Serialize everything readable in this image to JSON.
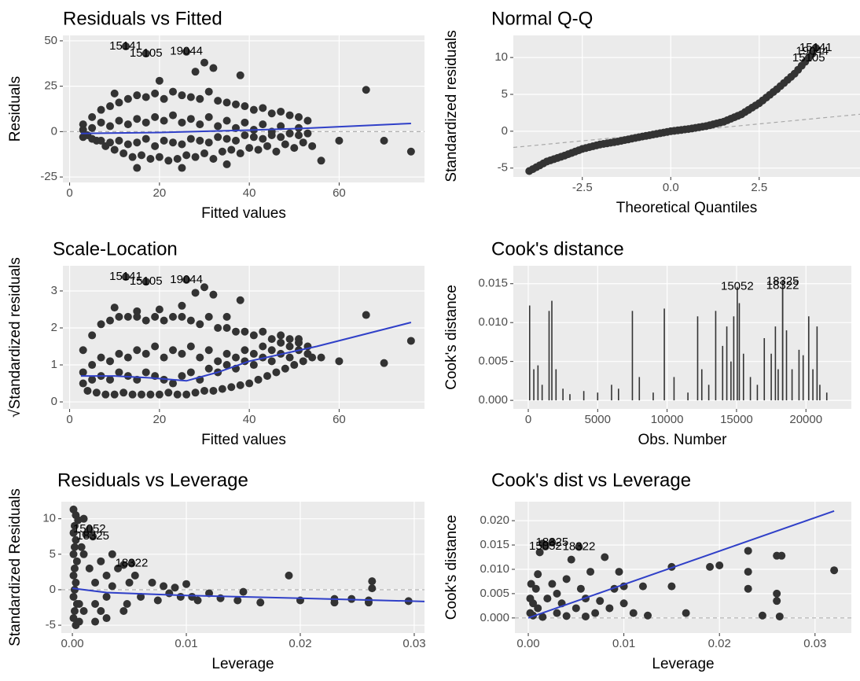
{
  "chart_data": [
    {
      "type": "scatter",
      "title": "Residuals vs Fitted",
      "x_label": "Fitted values",
      "y_label": "Residuals",
      "xlim": [
        -1.5,
        79
      ],
      "ylim": [
        -28,
        53
      ],
      "xticks": [
        0,
        20,
        40,
        60
      ],
      "yticks": [
        -25,
        0,
        25,
        50
      ],
      "grid": true,
      "color": "#333333",
      "hline": 0,
      "x": [
        3,
        5,
        7,
        9,
        11,
        13,
        15,
        17,
        19,
        21,
        23,
        25,
        27,
        29,
        31,
        33,
        35,
        37,
        39,
        41,
        43,
        45,
        47,
        49,
        51,
        53,
        4,
        6,
        8,
        10,
        12,
        14,
        16,
        18,
        20,
        22,
        24,
        26,
        28,
        30,
        32,
        34,
        36,
        38,
        40,
        42,
        44,
        46,
        48,
        50,
        52,
        54,
        3,
        5,
        7,
        9,
        11,
        13,
        15,
        17,
        19,
        21,
        23,
        25,
        27,
        29,
        31,
        33,
        35,
        37,
        39,
        41,
        43,
        45,
        47,
        49,
        51,
        3,
        5,
        7,
        9,
        11,
        13,
        15,
        17,
        19,
        21,
        23,
        25,
        27,
        29,
        31,
        33,
        35,
        37,
        39,
        41,
        43,
        45,
        47,
        49,
        51,
        53,
        12.5,
        17,
        26,
        30,
        28,
        32,
        38,
        60,
        66,
        70,
        76,
        56,
        20,
        10,
        15,
        25,
        35
      ],
      "y": [
        4,
        8,
        12,
        14,
        16,
        18,
        20,
        19,
        21,
        18,
        22,
        20,
        19,
        18,
        22,
        17,
        16,
        15,
        14,
        12,
        13,
        10,
        11,
        9,
        8,
        6,
        -2,
        -5,
        -8,
        -10,
        -12,
        -14,
        -13,
        -15,
        -14,
        -16,
        -15,
        -13,
        -14,
        -12,
        -15,
        -11,
        -10,
        -12,
        -9,
        -10,
        -8,
        -11,
        -7,
        -9,
        -6,
        -8,
        1,
        2,
        5,
        3,
        6,
        4,
        7,
        5,
        8,
        6,
        9,
        5,
        7,
        4,
        8,
        3,
        6,
        2,
        5,
        1,
        4,
        0,
        3,
        -1,
        2,
        -3,
        -4,
        -5,
        -6,
        -5,
        -7,
        -6,
        -4,
        -8,
        -5,
        -6,
        -7,
        -4,
        -5,
        -6,
        -3,
        -4,
        -5,
        -2,
        -3,
        -4,
        -2,
        -3,
        -1,
        -2,
        -1,
        47,
        43,
        44,
        38,
        33,
        35,
        31,
        -5,
        23,
        -5,
        -11,
        -16,
        28,
        21,
        -20,
        -20,
        -18
      ],
      "smooth": {
        "x": [
          2.5,
          20,
          40,
          52,
          76
        ],
        "y": [
          -1,
          -0.5,
          0.8,
          1.8,
          4.5
        ],
        "color": "#3040c8"
      },
      "annotations": [
        {
          "text": "15141",
          "x": 12.5,
          "y": 47
        },
        {
          "text": "15105",
          "x": 17,
          "y": 43
        },
        {
          "text": "19044",
          "x": 26,
          "y": 44
        }
      ]
    },
    {
      "type": "scatter",
      "title": "Normal Q-Q",
      "x_label": "Theoretical Quantiles",
      "y_label": "Standardized residuals",
      "xlim": [
        -4.45,
        5.35
      ],
      "ylim": [
        -6.2,
        13
      ],
      "xticks": [
        -2.5,
        {
          "value": 0,
          "label": "0.0"
        },
        2.5
      ],
      "yticks": [
        -5,
        0,
        5,
        10
      ],
      "grid": true,
      "color": "#333333",
      "x": [
        -4,
        -3.9,
        -3.8,
        -3.7,
        -3.6,
        -3.5,
        -3.4,
        -3.3,
        -3.2,
        -3.1,
        -3,
        -2.9,
        -2.8,
        -2.7,
        -2.6,
        -2.5,
        -2.4,
        -2.3,
        -2.2,
        -2.1,
        -2,
        -1.9,
        -1.8,
        -1.7,
        -1.6,
        -1.5,
        -1.4,
        -1.3,
        -1.2,
        -1.1,
        -1,
        -0.9,
        -0.8,
        -0.7,
        -0.6,
        -0.5,
        -0.4,
        -0.3,
        -0.2,
        -0.1,
        0,
        0.1,
        0.2,
        0.3,
        0.4,
        0.5,
        0.6,
        0.7,
        0.8,
        0.9,
        1,
        1.1,
        1.2,
        1.3,
        1.4,
        1.5,
        1.6,
        1.7,
        1.8,
        1.9,
        2,
        2.1,
        2.2,
        2.3,
        2.4,
        2.5,
        2.6,
        2.7,
        2.8,
        2.9,
        3,
        3.1,
        3.2,
        3.3,
        3.4,
        3.5,
        3.6,
        3.7,
        3.8,
        3.9,
        4,
        4.1
      ],
      "y": [
        -5.4,
        -5.14,
        -4.88,
        -4.62,
        -4.36,
        -4.1,
        -3.94,
        -3.78,
        -3.62,
        -3.46,
        -3.3,
        -3.12,
        -2.94,
        -2.76,
        -2.58,
        -2.4,
        -2.28,
        -2.16,
        -2.04,
        -1.92,
        -1.8,
        -1.72,
        -1.64,
        -1.56,
        -1.48,
        -1.4,
        -1.3,
        -1.2,
        -1.1,
        -1,
        -0.9,
        -0.81,
        -0.72,
        -0.63,
        -0.54,
        -0.45,
        -0.36,
        -0.27,
        -0.18,
        -0.09,
        0,
        0.06,
        0.12,
        0.18,
        0.24,
        0.3,
        0.38,
        0.46,
        0.54,
        0.62,
        0.7,
        0.82,
        0.94,
        1.06,
        1.18,
        1.3,
        1.5,
        1.7,
        1.9,
        2.1,
        2.3,
        2.6,
        2.9,
        3.2,
        3.5,
        3.8,
        4.18,
        4.56,
        4.94,
        5.32,
        5.7,
        6.12,
        6.54,
        6.96,
        7.38,
        7.8,
        8.34,
        8.88,
        9.42,
        9.96,
        10.5,
        11.3
      ],
      "refline": {
        "x": [
          -4.45,
          5.35
        ],
        "y": [
          -2.2,
          2.3
        ]
      },
      "annotations": [
        {
          "text": "15141",
          "x": 4.1,
          "y": 11.3
        },
        {
          "text": "19044",
          "x": 4,
          "y": 10.8
        },
        {
          "text": "15105",
          "x": 3.9,
          "y": 9.9
        }
      ]
    },
    {
      "type": "scatter",
      "title": "Scale-Location",
      "x_label": "Fitted values",
      "y_label": "√Standardized residuals",
      "xlim": [
        -1.5,
        79
      ],
      "ylim": [
        -0.19,
        3.68
      ],
      "xticks": [
        0,
        20,
        40,
        60
      ],
      "yticks": [
        0,
        1,
        2,
        3
      ],
      "grid": true,
      "color": "#333333",
      "x": [
        3,
        5,
        7,
        9,
        11,
        13,
        15,
        17,
        19,
        21,
        23,
        25,
        27,
        29,
        31,
        33,
        35,
        37,
        39,
        41,
        43,
        45,
        47,
        49,
        51,
        53,
        4,
        6,
        8,
        10,
        12,
        14,
        16,
        18,
        20,
        22,
        24,
        26,
        28,
        30,
        32,
        34,
        36,
        38,
        40,
        42,
        44,
        46,
        48,
        50,
        52,
        54,
        3,
        5,
        7,
        9,
        11,
        13,
        15,
        17,
        19,
        21,
        23,
        25,
        27,
        29,
        31,
        33,
        35,
        37,
        39,
        41,
        43,
        45,
        47,
        49,
        51,
        3,
        5,
        7,
        9,
        11,
        13,
        15,
        17,
        19,
        21,
        23,
        25,
        27,
        29,
        31,
        33,
        35,
        37,
        39,
        41,
        43,
        45,
        47,
        49,
        51,
        53,
        12.5,
        17,
        26,
        30,
        28,
        32,
        38,
        60,
        66,
        70,
        76,
        56,
        20,
        10,
        15,
        25,
        35
      ],
      "y": [
        1.4,
        1.8,
        2.1,
        2.2,
        2.3,
        2.3,
        2.3,
        2.2,
        2.3,
        2.2,
        2.3,
        2.3,
        2.2,
        2.1,
        2.3,
        2,
        2,
        1.9,
        1.9,
        1.8,
        1.9,
        1.7,
        1.8,
        1.7,
        1.6,
        1.5,
        0.3,
        0.25,
        0.2,
        0.2,
        0.25,
        0.2,
        0.2,
        0.2,
        0.2,
        0.25,
        0.2,
        0.2,
        0.25,
        0.3,
        0.3,
        0.35,
        0.4,
        0.45,
        0.5,
        0.6,
        0.7,
        0.8,
        0.9,
        1,
        1.1,
        1.2,
        0.8,
        1,
        1.2,
        1.1,
        1.3,
        1.2,
        1.4,
        1.3,
        1.5,
        1.2,
        1.4,
        1.3,
        1.5,
        1.2,
        1.4,
        1.1,
        1.3,
        1.2,
        1.4,
        1.3,
        1.5,
        1.4,
        1.6,
        1.5,
        1.7,
        0.5,
        0.6,
        0.7,
        0.6,
        0.8,
        0.7,
        0.6,
        0.8,
        0.7,
        0.6,
        0.5,
        0.7,
        0.8,
        0.6,
        0.9,
        0.8,
        1,
        0.9,
        1.1,
        1,
        1.2,
        1.1,
        1.3,
        1.2,
        1.4,
        1.3,
        3.38,
        3.25,
        3.3,
        3.1,
        2.95,
        2.9,
        2.75,
        1.1,
        2.35,
        1.05,
        1.65,
        1.2,
        2.5,
        2.55,
        2.45,
        2.6,
        2.3
      ],
      "smooth": {
        "x": [
          2.5,
          10,
          18,
          26,
          33,
          40,
          55,
          76
        ],
        "y": [
          0.7,
          0.7,
          0.65,
          0.57,
          0.8,
          1.1,
          1.5,
          2.15
        ],
        "color": "#3040c8"
      },
      "annotations": [
        {
          "text": "15141",
          "x": 12.5,
          "y": 3.38
        },
        {
          "text": "15105",
          "x": 17,
          "y": 3.25
        },
        {
          "text": "19044",
          "x": 26,
          "y": 3.3
        }
      ]
    },
    {
      "type": "bar",
      "title": "Cook's distance",
      "x_label": "Obs. Number",
      "y_label": "Cook's distance",
      "xlim": [
        -1075,
        23270
      ],
      "ylim": [
        -0.0011,
        0.0173
      ],
      "xticks": [
        0,
        5000,
        10000,
        15000,
        20000
      ],
      "yticks": [
        {
          "value": 0,
          "label": "0.000"
        },
        0.005,
        {
          "value": 0.01,
          "label": "0.010"
        },
        0.015
      ],
      "grid": true,
      "color": "#333333",
      "x": [
        100,
        400,
        700,
        1000,
        1500,
        1700,
        2000,
        2500,
        3000,
        4000,
        5000,
        6000,
        6500,
        7500,
        8000,
        9000,
        9800,
        10500,
        11500,
        12200,
        12500,
        13000,
        13500,
        14000,
        14300,
        14600,
        14800,
        15052,
        15200,
        15500,
        16000,
        16500,
        17000,
        17500,
        17800,
        18000,
        18322,
        18325,
        18600,
        19000,
        19500,
        19800,
        20200,
        20500,
        20800,
        21000,
        21500
      ],
      "values": [
        0.0122,
        0.004,
        0.0045,
        0.002,
        0.0115,
        0.0128,
        0.004,
        0.0015,
        0.0008,
        0.0012,
        0.001,
        0.002,
        0.0015,
        0.0115,
        0.003,
        0.001,
        0.0118,
        0.003,
        0.001,
        0.0108,
        0.004,
        0.002,
        0.0115,
        0.007,
        0.0095,
        0.005,
        0.0108,
        0.0146,
        0.0125,
        0.006,
        0.003,
        0.002,
        0.008,
        0.006,
        0.0095,
        0.004,
        0.0147,
        0.0153,
        0.009,
        0.004,
        0.0065,
        0.0058,
        0.0108,
        0.004,
        0.0095,
        0.002,
        0.001
      ],
      "annotations": [
        {
          "text": "15052",
          "x": 15052,
          "y": 0.0146
        },
        {
          "text": "18325",
          "x": 18325,
          "y": 0.0153
        },
        {
          "text": "18322",
          "x": 18322,
          "y": 0.0147
        }
      ]
    },
    {
      "type": "scatter",
      "title": "Residuals vs Leverage",
      "x_label": "Leverage",
      "y_label": "Standardized Residuals",
      "xlim": [
        -0.00097,
        0.0309
      ],
      "ylim": [
        -6.1,
        12.4
      ],
      "xticks": [
        {
          "value": 0,
          "label": "0.00"
        },
        0.01,
        0.02,
        0.03
      ],
      "yticks": [
        -5,
        0,
        5,
        10
      ],
      "grid": true,
      "color": "#333333",
      "hline": 0,
      "x": [
        0.0001,
        0.0003,
        0.0005,
        0.0002,
        0.0001,
        0.0003,
        0.0002,
        0.0001,
        0.0004,
        0.0002,
        0.0001,
        0.0003,
        0.0002,
        0.0001,
        0.0004,
        0.0002,
        0.0001,
        0.0003,
        0.0006,
        0.001,
        0.0012,
        0.0015,
        0.0018,
        0.001,
        0.0015,
        0.002,
        0.002,
        0.0025,
        0.003,
        0.003,
        0.0035,
        0.004,
        0.0045,
        0.0048,
        0.005,
        0.0055,
        0.006,
        0.007,
        0.0075,
        0.008,
        0.0085,
        0.009,
        0.0095,
        0.01,
        0.0105,
        0.011,
        0.012,
        0.013,
        0.0145,
        0.015,
        0.0165,
        0.019,
        0.02,
        0.023,
        0.023,
        0.0245,
        0.026,
        0.026,
        0.0263,
        0.0263,
        0.0295,
        0.0045,
        0.003,
        0.002,
        0.001,
        0.0008,
        0.0006,
        0.0025,
        0.0035,
        0.0052
      ],
      "y": [
        11.3,
        10.5,
        9.8,
        9,
        8,
        7,
        6,
        5,
        4,
        3,
        2,
        1,
        0,
        -1,
        -2,
        -3,
        -4,
        -5,
        -4.5,
        -3,
        7.8,
        8.5,
        7.5,
        5,
        3,
        1,
        -2,
        4,
        2,
        -1,
        0.5,
        3,
        3.5,
        -2,
        1,
        2,
        -1,
        1,
        -1.5,
        0.5,
        -0.5,
        0.3,
        -1,
        0.8,
        -1,
        -1.5,
        -0.5,
        -1.2,
        -1.5,
        -0.3,
        -1.8,
        2,
        -1.5,
        -1.3,
        -1.8,
        -1.3,
        -1.8,
        -1.5,
        0.2,
        1.2,
        -1.6,
        -3,
        -4,
        -4.5,
        10,
        6,
        -2,
        -3,
        5,
        3.7
      ],
      "smooth": {
        "x": [
          0,
          0.003,
          0.01,
          0.02,
          0.032
        ],
        "y": [
          0.2,
          -0.4,
          -0.8,
          -1.2,
          -1.7
        ],
        "color": "#3040c8"
      },
      "annotations": [
        {
          "text": "15052",
          "x": 0.0015,
          "y": 8.5
        },
        {
          "text": "18325",
          "x": 0.0018,
          "y": 7.5
        },
        {
          "text": "18322",
          "x": 0.0052,
          "y": 3.7
        }
      ]
    },
    {
      "type": "scatter",
      "title": "Cook's dist vs Leverage",
      "x_label": "Leverage",
      "y_label": "Cook's distance",
      "xlim": [
        -0.0014,
        0.0338
      ],
      "ylim": [
        -0.0031,
        0.0239
      ],
      "xticks": [
        {
          "value": 0,
          "label": "0.00"
        },
        0.01,
        0.02,
        0.03
      ],
      "yticks": [
        {
          "value": 0,
          "label": "0.000"
        },
        0.005,
        {
          "value": 0.01,
          "label": "0.010"
        },
        0.015,
        {
          "value": 0.02,
          "label": "0.020"
        }
      ],
      "grid": true,
      "color": "#333333",
      "hline": 0,
      "x": [
        0.0002,
        0.0005,
        0.0008,
        0.001,
        0.0012,
        0.0018,
        0.0015,
        0.0053,
        0.001,
        0.002,
        0.0025,
        0.003,
        0.003,
        0.0035,
        0.004,
        0.0045,
        0.005,
        0.0055,
        0.006,
        0.0065,
        0.007,
        0.0075,
        0.008,
        0.0085,
        0.009,
        0.0095,
        0.01,
        0.01,
        0.011,
        0.012,
        0.0125,
        0.015,
        0.015,
        0.0165,
        0.019,
        0.02,
        0.023,
        0.023,
        0.023,
        0.0245,
        0.026,
        0.0265,
        0.026,
        0.026,
        0.0263,
        0.032,
        0.0005,
        0.0015,
        0.004,
        0.006,
        0.0002,
        0.0003,
        0.0025
      ],
      "y": [
        0.001,
        0.003,
        0.006,
        0.009,
        0.0135,
        0.0147,
        0.0153,
        0.0146,
        0.002,
        0.004,
        0.007,
        0.001,
        0.005,
        0.003,
        0.008,
        0.012,
        0.002,
        0.006,
        0.004,
        0.0095,
        0.001,
        0.0035,
        0.0125,
        0.002,
        0.006,
        0.0095,
        0.0065,
        0.003,
        0.001,
        0.0065,
        0.0005,
        0.0105,
        0.0065,
        0.001,
        0.0105,
        0.0108,
        0.0138,
        0.0095,
        0.006,
        0.0005,
        0.0128,
        0.0128,
        0.005,
        0.0035,
        0.0003,
        0.0098,
        0.0005,
        0.0002,
        0.0004,
        0.0003,
        0.004,
        0.007,
        0.0155
      ],
      "smooth": {
        "x": [
          0,
          0.032
        ],
        "y": [
          0,
          0.022
        ],
        "color": "#3040c8"
      },
      "annotations": [
        {
          "text": "15052",
          "x": 0.0018,
          "y": 0.0147
        },
        {
          "text": "18325",
          "x": 0.0025,
          "y": 0.0155
        },
        {
          "text": "18322",
          "x": 0.0053,
          "y": 0.0146
        }
      ]
    }
  ]
}
